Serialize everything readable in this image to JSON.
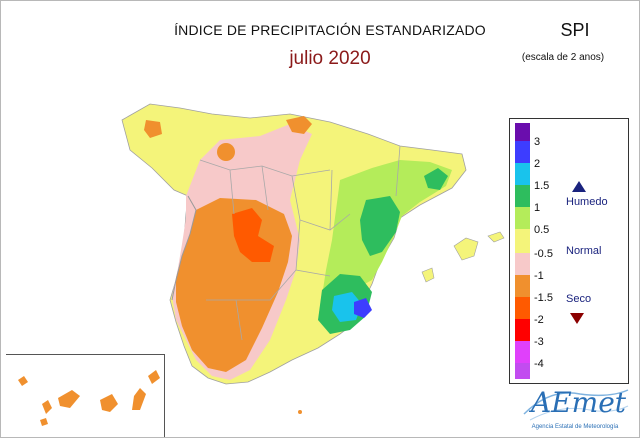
{
  "title": "ÍNDICE DE PRECIPITACIÓN ESTANDARIZADO",
  "subtitle": "julio 2020",
  "index_name": "SPI",
  "scale_note": "(escala de 2 anos)",
  "legend": {
    "ticks": [
      "3",
      "2",
      "1.5",
      "1",
      "0.5",
      "-0.5",
      "-1",
      "-1.5",
      "-2",
      "-3",
      "-4"
    ],
    "colors": [
      "#6a0dad",
      "#3d3dff",
      "#19c3ec",
      "#2ebd5e",
      "#b4ec5a",
      "#f4f47a",
      "#f7c9c9",
      "#f0902e",
      "#ff5a00",
      "#ff0000",
      "#e040fb",
      "#c24cf0"
    ],
    "categories": {
      "humid": "Humedo",
      "normal": "Normal",
      "dry": "Seco"
    }
  },
  "map_colors": {
    "very_humid": "#3d3dff",
    "humid_strong": "#19c3ec",
    "humid": "#2ebd5e",
    "slightly_humid": "#b4ec5a",
    "normal": "#f4f47a",
    "slightly_dry": "#f7c9c9",
    "dry": "#f0902e",
    "very_dry": "#ff5a00",
    "borders": "#a0a0a0"
  },
  "logo": {
    "name": "AEmet",
    "caption": "Agencia Estatal de Meteorología"
  }
}
